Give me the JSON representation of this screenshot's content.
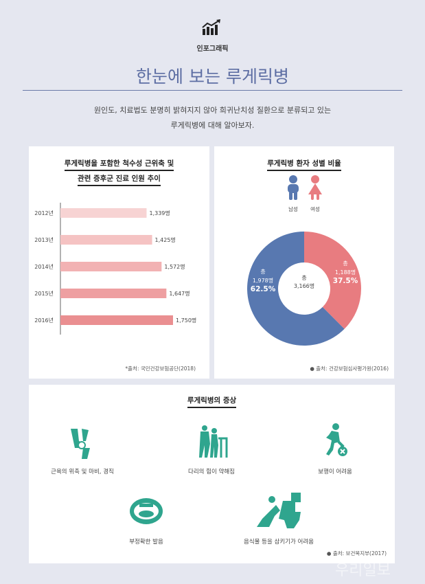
{
  "header": {
    "badge": "인포그래픽",
    "title": "한눈에 보는 루게릭병",
    "intro_line1": "원인도, 치료법도 분명히 밝혀지지 않아 희귀난치성 질환으로 분류되고 있는",
    "intro_line2": "루게릭병에 대해 알아보자."
  },
  "bar_panel": {
    "title_line1": "루게릭병을 포함한 척수성 근위축 및",
    "title_line2": "관련 증후군 진료 인원 추이",
    "source": "*출처: 국민건강보험공단(2018)"
  },
  "pie_panel": {
    "title": "루게릭병 환자 성별 비율",
    "male_label": "남성",
    "female_label": "여성",
    "center_line1": "총",
    "center_line2": "3,166명",
    "male_text1": "총",
    "male_text2": "1,978명",
    "male_pct": "62.5%",
    "female_text1": "총",
    "female_text2": "1,188명",
    "female_pct": "37.5%",
    "source": "● 출처: 건강보험심사평가원(2016)"
  },
  "symptoms": {
    "title": "루게릭병의 증상",
    "items": [
      {
        "label": "근육의 위축 및 마비, 경직"
      },
      {
        "label": "다리의 힘이 약해짐"
      },
      {
        "label": "보행이 어려움"
      },
      {
        "label": "부정확한 발음"
      },
      {
        "label": "음식물 등을 삼키기가 어려움"
      }
    ],
    "source": "● 출처: 보건복지부(2017)"
  },
  "watermark": "우리일보",
  "colors": {
    "accent": "#5d6ea3",
    "male": "#5878b0",
    "female": "#e87c80",
    "icon": "#2fa58e"
  },
  "chart_data": [
    {
      "type": "bar",
      "orientation": "horizontal",
      "categories": [
        "2012년",
        "2013년",
        "2014년",
        "2015년",
        "2016년"
      ],
      "values": [
        1339,
        1425,
        1572,
        1647,
        1750
      ],
      "value_labels": [
        "1,339명",
        "1,425명",
        "1,572명",
        "1,647명",
        "1,750명"
      ],
      "title": "루게릭병을 포함한 척수성 근위축 및 관련 증후군 진료 인원 추이",
      "xlabel": "",
      "ylabel": "",
      "grid": false
    },
    {
      "type": "pie",
      "donut": true,
      "labels": [
        "남성",
        "여성"
      ],
      "values": [
        1978,
        1188
      ],
      "percentages": [
        62.5,
        37.5
      ],
      "total": 3166,
      "title": "루게릭병 환자 성별 비율"
    }
  ]
}
